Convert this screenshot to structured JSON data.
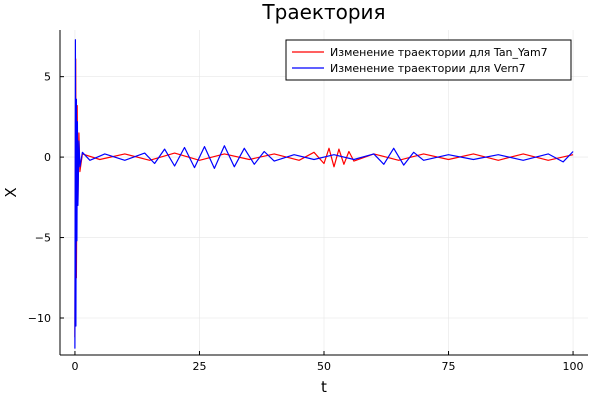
{
  "chart_data": {
    "type": "line",
    "title": "Траектория",
    "xlabel": "t",
    "ylabel": "X",
    "xlim": [
      -3,
      103
    ],
    "ylim": [
      -12.3,
      7.9
    ],
    "xticks": [
      0,
      25,
      50,
      75,
      100
    ],
    "xtick_labels": [
      "0",
      "25",
      "50",
      "75",
      "100"
    ],
    "yticks": [
      5,
      0,
      -5,
      -10
    ],
    "ytick_labels": [
      "5",
      "0",
      "−5",
      "−10"
    ],
    "grid": true,
    "legend_position": "top-right",
    "series": [
      {
        "name": "Изменение траектории для Tan_Yam7",
        "color": "#ff0000",
        "x": [
          0.0,
          0.15,
          0.3,
          0.45,
          0.6,
          0.8,
          1.0,
          1.5,
          5,
          10,
          15,
          20,
          25,
          30,
          35,
          40,
          45,
          48,
          50,
          51,
          52,
          53,
          54,
          55,
          56,
          60,
          65,
          70,
          75,
          80,
          85,
          90,
          95,
          100
        ],
        "y": [
          -11.2,
          6.1,
          -7.5,
          3.2,
          -2.8,
          1.5,
          -0.9,
          0.2,
          -0.15,
          0.2,
          -0.2,
          0.25,
          -0.2,
          0.2,
          -0.15,
          0.2,
          -0.2,
          0.3,
          -0.4,
          0.55,
          -0.6,
          0.5,
          -0.45,
          0.35,
          -0.25,
          0.2,
          -0.2,
          0.2,
          -0.15,
          0.2,
          -0.2,
          0.2,
          -0.2,
          0.15
        ]
      },
      {
        "name": "Изменение траектории для Vern7",
        "color": "#0000ff",
        "x": [
          0.0,
          0.1,
          0.2,
          0.3,
          0.4,
          0.5,
          0.6,
          0.8,
          1.0,
          1.5,
          3,
          6,
          10,
          14,
          16,
          18,
          20,
          22,
          24,
          26,
          28,
          30,
          32,
          34,
          36,
          38,
          40,
          44,
          48,
          52,
          56,
          60,
          62,
          64,
          66,
          68,
          70,
          75,
          80,
          85,
          90,
          95,
          98,
          100
        ],
        "y": [
          -11.9,
          7.3,
          -10.5,
          3.6,
          -5.2,
          2.2,
          -3.0,
          1.0,
          -0.6,
          0.3,
          -0.2,
          0.2,
          -0.2,
          0.25,
          -0.4,
          0.5,
          -0.55,
          0.6,
          -0.65,
          0.65,
          -0.7,
          0.7,
          -0.6,
          0.55,
          -0.45,
          0.35,
          -0.25,
          0.15,
          -0.15,
          0.15,
          -0.15,
          0.2,
          -0.45,
          0.55,
          -0.5,
          0.3,
          -0.2,
          0.15,
          -0.15,
          0.15,
          -0.2,
          0.2,
          -0.3,
          0.35
        ]
      }
    ]
  }
}
